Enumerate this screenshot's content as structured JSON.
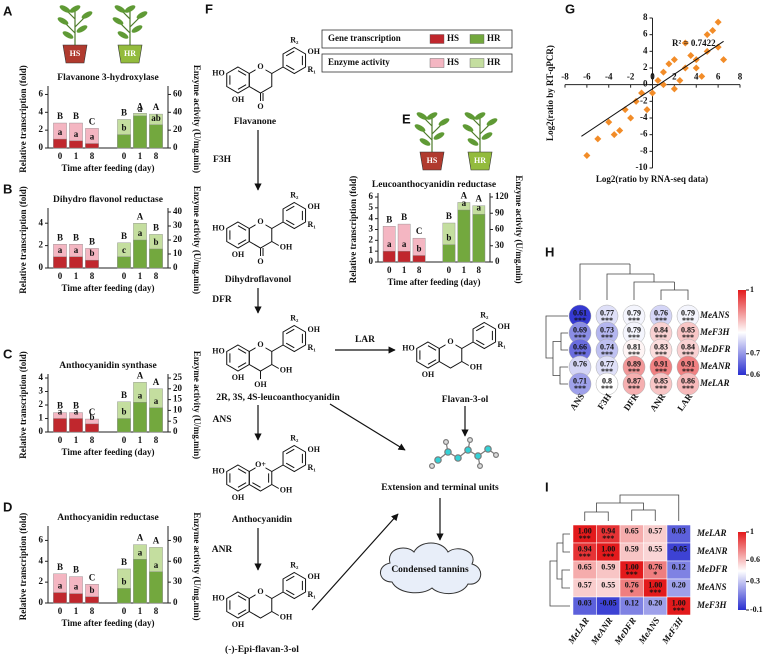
{
  "chart_data": [
    {
      "type": "bar",
      "label": "A",
      "pots": [
        "HS",
        "HR"
      ],
      "title": "Flavanone 3-hydroxylase",
      "categories": [
        "0",
        "1",
        "8",
        "0",
        "1",
        "8"
      ],
      "xlabel": "Time after feeding (day)",
      "ylabel": "Relative transcription (fold)",
      "y2label": "Enzyme activity (U/mg.min)",
      "ylim": [
        0,
        6.5
      ],
      "yticks": [
        0,
        2,
        4,
        6
      ],
      "y2lim": [
        0,
        65
      ],
      "y2ticks": [
        0,
        20,
        40,
        60
      ],
      "series": [
        {
          "axis": "y2",
          "color": [
            "#f4b6c2",
            "#f4b6c2",
            "#f4b6c2",
            "#c4de9f",
            "#c4de9f",
            "#c4de9f"
          ],
          "values": [
            28,
            28,
            22,
            32,
            39,
            38
          ],
          "letters": [
            "B",
            "B",
            "C",
            "B",
            "A",
            "A"
          ]
        },
        {
          "color": [
            "#c0272d",
            "#c0272d",
            "#c0272d",
            "#73a83e",
            "#73a83e",
            "#73a83e"
          ],
          "values": [
            1.0,
            0.8,
            0.5,
            1.5,
            3.6,
            2.6
          ],
          "letters": [
            "a",
            "a",
            "a",
            "b",
            "a",
            "ab"
          ]
        }
      ]
    },
    {
      "type": "bar",
      "label": "B",
      "title": "Dihydro flavonol reductase",
      "categories": [
        "0",
        "1",
        "8",
        "0",
        "1",
        "8"
      ],
      "xlabel": "Time after feeding (day)",
      "ylabel": "Relative transcription (fold)",
      "y2label": "Enzyme activity (U/mg.min)",
      "ylim": [
        0,
        5
      ],
      "yticks": [
        0,
        2,
        4
      ],
      "y2lim": [
        0,
        40
      ],
      "y2ticks": [
        0,
        10,
        20,
        30,
        40
      ],
      "series": [
        {
          "axis": "y2",
          "color": [
            "#f4b6c2",
            "#f4b6c2",
            "#f4b6c2",
            "#c4de9f",
            "#c4de9f",
            "#c4de9f"
          ],
          "values": [
            17,
            17,
            14,
            18,
            32,
            24
          ],
          "letters": [
            "B",
            "B",
            "B",
            "B",
            "A",
            "B"
          ]
        },
        {
          "color": [
            "#c0272d",
            "#c0272d",
            "#c0272d",
            "#73a83e",
            "#73a83e",
            "#73a83e"
          ],
          "values": [
            1.0,
            1.0,
            0.7,
            1.0,
            2.5,
            1.7
          ],
          "letters": [
            "a",
            "a",
            "b",
            "c",
            "a",
            "b"
          ]
        }
      ]
    },
    {
      "type": "bar",
      "label": "C",
      "title": "Anthocyanidin synthase",
      "categories": [
        "0",
        "1",
        "8",
        "0",
        "1",
        "8"
      ],
      "xlabel": "Time after feeding (day)",
      "ylabel": "Relative transcription (fold)",
      "y2label": "Enzyme activity (U/mg.min)",
      "ylim": [
        0,
        4
      ],
      "yticks": [
        0,
        1,
        2,
        3,
        4
      ],
      "y2lim": [
        0,
        25
      ],
      "y2ticks": [
        0,
        5,
        10,
        15,
        20,
        25
      ],
      "series": [
        {
          "axis": "y2",
          "color": [
            "#f4b6c2",
            "#f4b6c2",
            "#f4b6c2",
            "#c4de9f",
            "#c4de9f",
            "#c4de9f"
          ],
          "values": [
            9,
            9,
            6,
            14,
            23,
            20
          ],
          "letters": [
            "B",
            "B",
            "C",
            "B",
            "A",
            "A"
          ]
        },
        {
          "color": [
            "#c0272d",
            "#c0272d",
            "#c0272d",
            "#73a83e",
            "#73a83e",
            "#73a83e"
          ],
          "values": [
            1.0,
            1.0,
            0.6,
            1.0,
            2.2,
            1.8
          ],
          "letters": [
            "a",
            "a",
            "b",
            "b",
            "a",
            "a"
          ]
        }
      ]
    },
    {
      "type": "bar",
      "label": "D",
      "title": "Anthocyanidin reductase",
      "categories": [
        "0",
        "1",
        "8",
        "0",
        "1",
        "8"
      ],
      "xlabel": "Time after feeding (day)",
      "ylabel": "Relative transcription (fold)",
      "y2label": "Enzyme activity (U/mg.min)",
      "ylim": [
        0,
        7
      ],
      "yticks": [
        0,
        2,
        4,
        6
      ],
      "y2lim": [
        0,
        105
      ],
      "y2ticks": [
        0,
        30,
        60,
        90
      ],
      "series": [
        {
          "axis": "y2",
          "color": [
            "#f4b6c2",
            "#f4b6c2",
            "#f4b6c2",
            "#c4de9f",
            "#c4de9f",
            "#c4de9f"
          ],
          "values": [
            42,
            38,
            27,
            49,
            84,
            80
          ],
          "letters": [
            "B",
            "B",
            "C",
            "B",
            "A",
            "A"
          ]
        },
        {
          "color": [
            "#c0272d",
            "#c0272d",
            "#c0272d",
            "#73a83e",
            "#73a83e",
            "#73a83e"
          ],
          "values": [
            1.0,
            0.9,
            0.6,
            1.4,
            4.2,
            3.0
          ],
          "letters": [
            "a",
            "a",
            "b",
            "b",
            "a",
            "a"
          ]
        }
      ]
    },
    {
      "type": "bar",
      "label": "E",
      "pots": [
        "HS",
        "HR"
      ],
      "title": "Leucoanthocyanidin reductase",
      "categories": [
        "0",
        "1",
        "8",
        "0",
        "1",
        "8"
      ],
      "xlabel": "Time after feeding (day)",
      "ylabel": "Relative transcription (fold)",
      "y2label": "Enzyme activity (U/mg.min)",
      "ylim": [
        0,
        6
      ],
      "yticks": [
        0,
        1,
        2,
        3,
        4,
        5,
        6
      ],
      "y2lim": [
        0,
        120
      ],
      "y2ticks": [
        0,
        30,
        60,
        90,
        120
      ],
      "series": [
        {
          "axis": "y2",
          "color": [
            "#f4b6c2",
            "#f4b6c2",
            "#f4b6c2",
            "#c4de9f",
            "#c4de9f",
            "#c4de9f"
          ],
          "values": [
            66,
            70,
            44,
            72,
            110,
            104
          ],
          "letters": [
            "B",
            "B",
            "C",
            "B",
            "A",
            "A"
          ]
        },
        {
          "color": [
            "#c0272d",
            "#c0272d",
            "#c0272d",
            "#73a83e",
            "#73a83e",
            "#73a83e"
          ],
          "values": [
            1.0,
            1.0,
            0.6,
            1.6,
            4.8,
            4.4
          ],
          "letters": [
            "a",
            "a",
            "b",
            "b",
            "a",
            "a"
          ]
        }
      ]
    },
    {
      "type": "scatter",
      "label": "G",
      "annotation": "R² = 0.7422",
      "xlabel": "Log2(ratio by RNA-seq data)",
      "ylabel": "Log2(ratio by RT-qPCR)",
      "color": "#f28c28",
      "x": [
        -6,
        -5,
        -4,
        -3.5,
        -3,
        -2.5,
        -2,
        -1.5,
        -1,
        -0.5,
        0,
        0.5,
        1,
        1.5,
        2,
        2.5,
        3,
        3,
        3.5,
        4,
        4.5,
        5,
        5.5,
        6,
        6.5,
        5,
        4,
        2,
        1,
        6
      ],
      "y": [
        -8.5,
        -6.5,
        -4.5,
        -6,
        -5.5,
        -3,
        -4,
        -2,
        -1,
        -3,
        -1,
        0.5,
        1.5,
        2.5,
        3,
        0.5,
        2,
        5,
        3.5,
        2,
        1,
        4,
        6.5,
        7.5,
        3,
        6,
        3,
        -0.5,
        0,
        4.5
      ],
      "xlim": [
        -8,
        8
      ],
      "xticks": [
        -8,
        -6,
        -4,
        -2,
        0,
        2,
        4,
        6,
        8
      ],
      "ylim": [
        -10,
        8
      ],
      "yticks": [
        -10,
        -8,
        -6,
        -4,
        -2,
        0,
        2,
        4,
        6,
        8
      ],
      "trendline": {
        "x": [
          -6.5,
          6.5
        ],
        "y": [
          -6.2,
          5.2
        ]
      }
    },
    {
      "type": "corrplot",
      "shape": "circle",
      "label": "H",
      "rows": [
        "MeANS",
        "MeF3H",
        "MeDFR",
        "MeANR",
        "MeLAR"
      ],
      "columns": [
        "ANS",
        "F3H",
        "DFR",
        "ANR",
        "LAR"
      ],
      "values": [
        [
          0.61,
          0.77,
          0.79,
          0.76,
          0.79
        ],
        [
          0.69,
          0.73,
          0.79,
          0.84,
          0.85
        ],
        [
          0.66,
          0.74,
          0.81,
          0.83,
          0.84
        ],
        [
          0.76,
          0.77,
          0.89,
          0.91,
          0.91
        ],
        [
          0.71,
          0.8,
          0.87,
          0.85,
          0.86
        ]
      ],
      "stars": [
        [
          "***",
          "***",
          "***",
          "***",
          "***"
        ],
        [
          "***",
          "***",
          "***",
          "***",
          "***"
        ],
        [
          "***",
          "***",
          "***",
          "***",
          "***"
        ],
        [
          null,
          "***",
          "***",
          "***",
          "***"
        ],
        [
          "***",
          "***",
          "***",
          "***",
          "***"
        ]
      ],
      "clim": [
        0.6,
        1
      ],
      "cticks": [
        1,
        0.7,
        0.6
      ],
      "colors": [
        "#2a2fd0",
        "#ffffff",
        "#e31a1c"
      ]
    },
    {
      "type": "corrplot",
      "shape": "square",
      "label": "I",
      "rows": [
        "MeLAR",
        "MeANR",
        "MeDFR",
        "MeANS",
        "MeF3H"
      ],
      "columns": [
        "MeLAR",
        "MeANR",
        "MeDFR",
        "MeANS",
        "MeF3H"
      ],
      "values": [
        [
          1,
          0.94,
          0.65,
          0.57,
          0.03
        ],
        [
          0.94,
          1,
          0.59,
          0.55,
          -0.05
        ],
        [
          0.65,
          0.59,
          1,
          0.76,
          0.12
        ],
        [
          0.57,
          0.55,
          0.76,
          1,
          0.2
        ],
        [
          0.03,
          -0.05,
          0.12,
          0.2,
          1
        ]
      ],
      "value_labels": [
        [
          "1.00",
          "0.94",
          "0.65",
          "0.57",
          "0.03"
        ],
        [
          "0.94",
          "1.00",
          "0.59",
          "0.55",
          "-0.05"
        ],
        [
          "0.65",
          "0.59",
          "1.00",
          "0.76",
          "0.12"
        ],
        [
          "0.57",
          "0.55",
          "0.76",
          "1.00",
          "0.20"
        ],
        [
          "0.03",
          "-0.05",
          "0.12",
          "0.20",
          "1.00"
        ]
      ],
      "stars": [
        [
          "***",
          "***",
          null,
          null,
          null
        ],
        [
          "***",
          "***",
          null,
          null,
          null
        ],
        [
          null,
          null,
          "***",
          "*",
          null
        ],
        [
          null,
          null,
          "*",
          "***",
          null
        ],
        [
          null,
          null,
          null,
          null,
          "***"
        ]
      ],
      "clim": [
        -0.1,
        1
      ],
      "cticks": [
        1,
        0.6,
        0.3,
        -0.1
      ],
      "colors": [
        "#2a2fd0",
        "#ffffff",
        "#e31a1c"
      ]
    }
  ],
  "diagram": {
    "label": "F",
    "legend": [
      {
        "label": "Gene transcription",
        "items": [
          {
            "label": "HS",
            "color": "#c0272d"
          },
          {
            "label": "HR",
            "color": "#73a83e"
          }
        ]
      },
      {
        "label": "Enzyme activity",
        "items": [
          {
            "label": "HS",
            "color": "#f4b6c2"
          },
          {
            "label": "HR",
            "color": "#c4de9f"
          }
        ]
      }
    ],
    "compounds": [
      "Flavanone",
      "Dihydroflavonol",
      "2R, 3S, 4S-leucoanthocyanidin",
      "Flavan-3-ol",
      "Anthocyanidin",
      "(-)-Epi-flavan-3-ol"
    ],
    "enzymes": [
      "F3H",
      "DFR",
      "LAR",
      "ANS",
      "ANR"
    ],
    "products": [
      "Extension and terminal units",
      "Condensed tannins"
    ],
    "atoms": {
      "OH": "OH",
      "HO": "HO",
      "O": "O",
      "O_plus": "O+",
      "R1": "R₁",
      "R2": "R₂"
    }
  }
}
